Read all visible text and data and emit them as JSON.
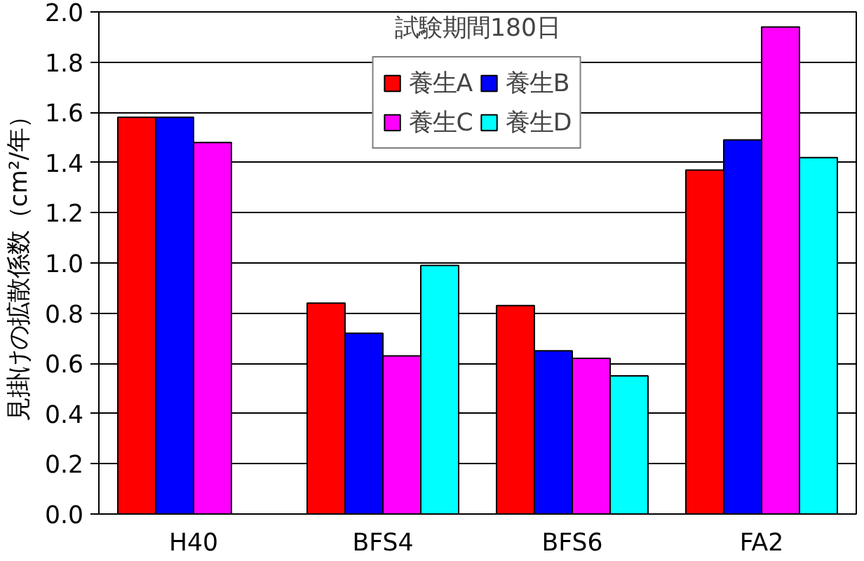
{
  "chart_data": {
    "type": "bar",
    "ylabel": "見掛けの拡散係数（cm²/年）",
    "annotations": [
      "試験期間180日"
    ],
    "categories": [
      "H40",
      "BFS4",
      "BFS6",
      "FA2"
    ],
    "series": [
      {
        "name": "養生A",
        "color": "#ff0000",
        "values": [
          1.58,
          0.84,
          0.83,
          1.37
        ]
      },
      {
        "name": "養生B",
        "color": "#0000ff",
        "values": [
          1.58,
          0.72,
          0.65,
          1.49
        ]
      },
      {
        "name": "養生C",
        "color": "#ff00ff",
        "values": [
          1.48,
          0.63,
          0.62,
          1.94
        ]
      },
      {
        "name": "養生D",
        "color": "#00ffff",
        "values": [
          null,
          0.99,
          0.55,
          1.42
        ]
      }
    ],
    "ylim": [
      0,
      2.0
    ],
    "yticks": [
      {
        "value": 0,
        "label": "0.0"
      },
      {
        "value": 0.2,
        "label": "0.2"
      },
      {
        "value": 0.4,
        "label": "0.4"
      },
      {
        "value": 0.6,
        "label": "0.6"
      },
      {
        "value": 0.8,
        "label": "0.8"
      },
      {
        "value": 1.0,
        "label": "1.0"
      },
      {
        "value": 1.2,
        "label": "1.2"
      },
      {
        "value": 1.4,
        "label": "1.4"
      },
      {
        "value": 1.6,
        "label": "1.6"
      },
      {
        "value": 1.8,
        "label": "1.8"
      },
      {
        "value": 2.0,
        "label": "2.0"
      }
    ],
    "grid": "y",
    "legend": "top"
  }
}
